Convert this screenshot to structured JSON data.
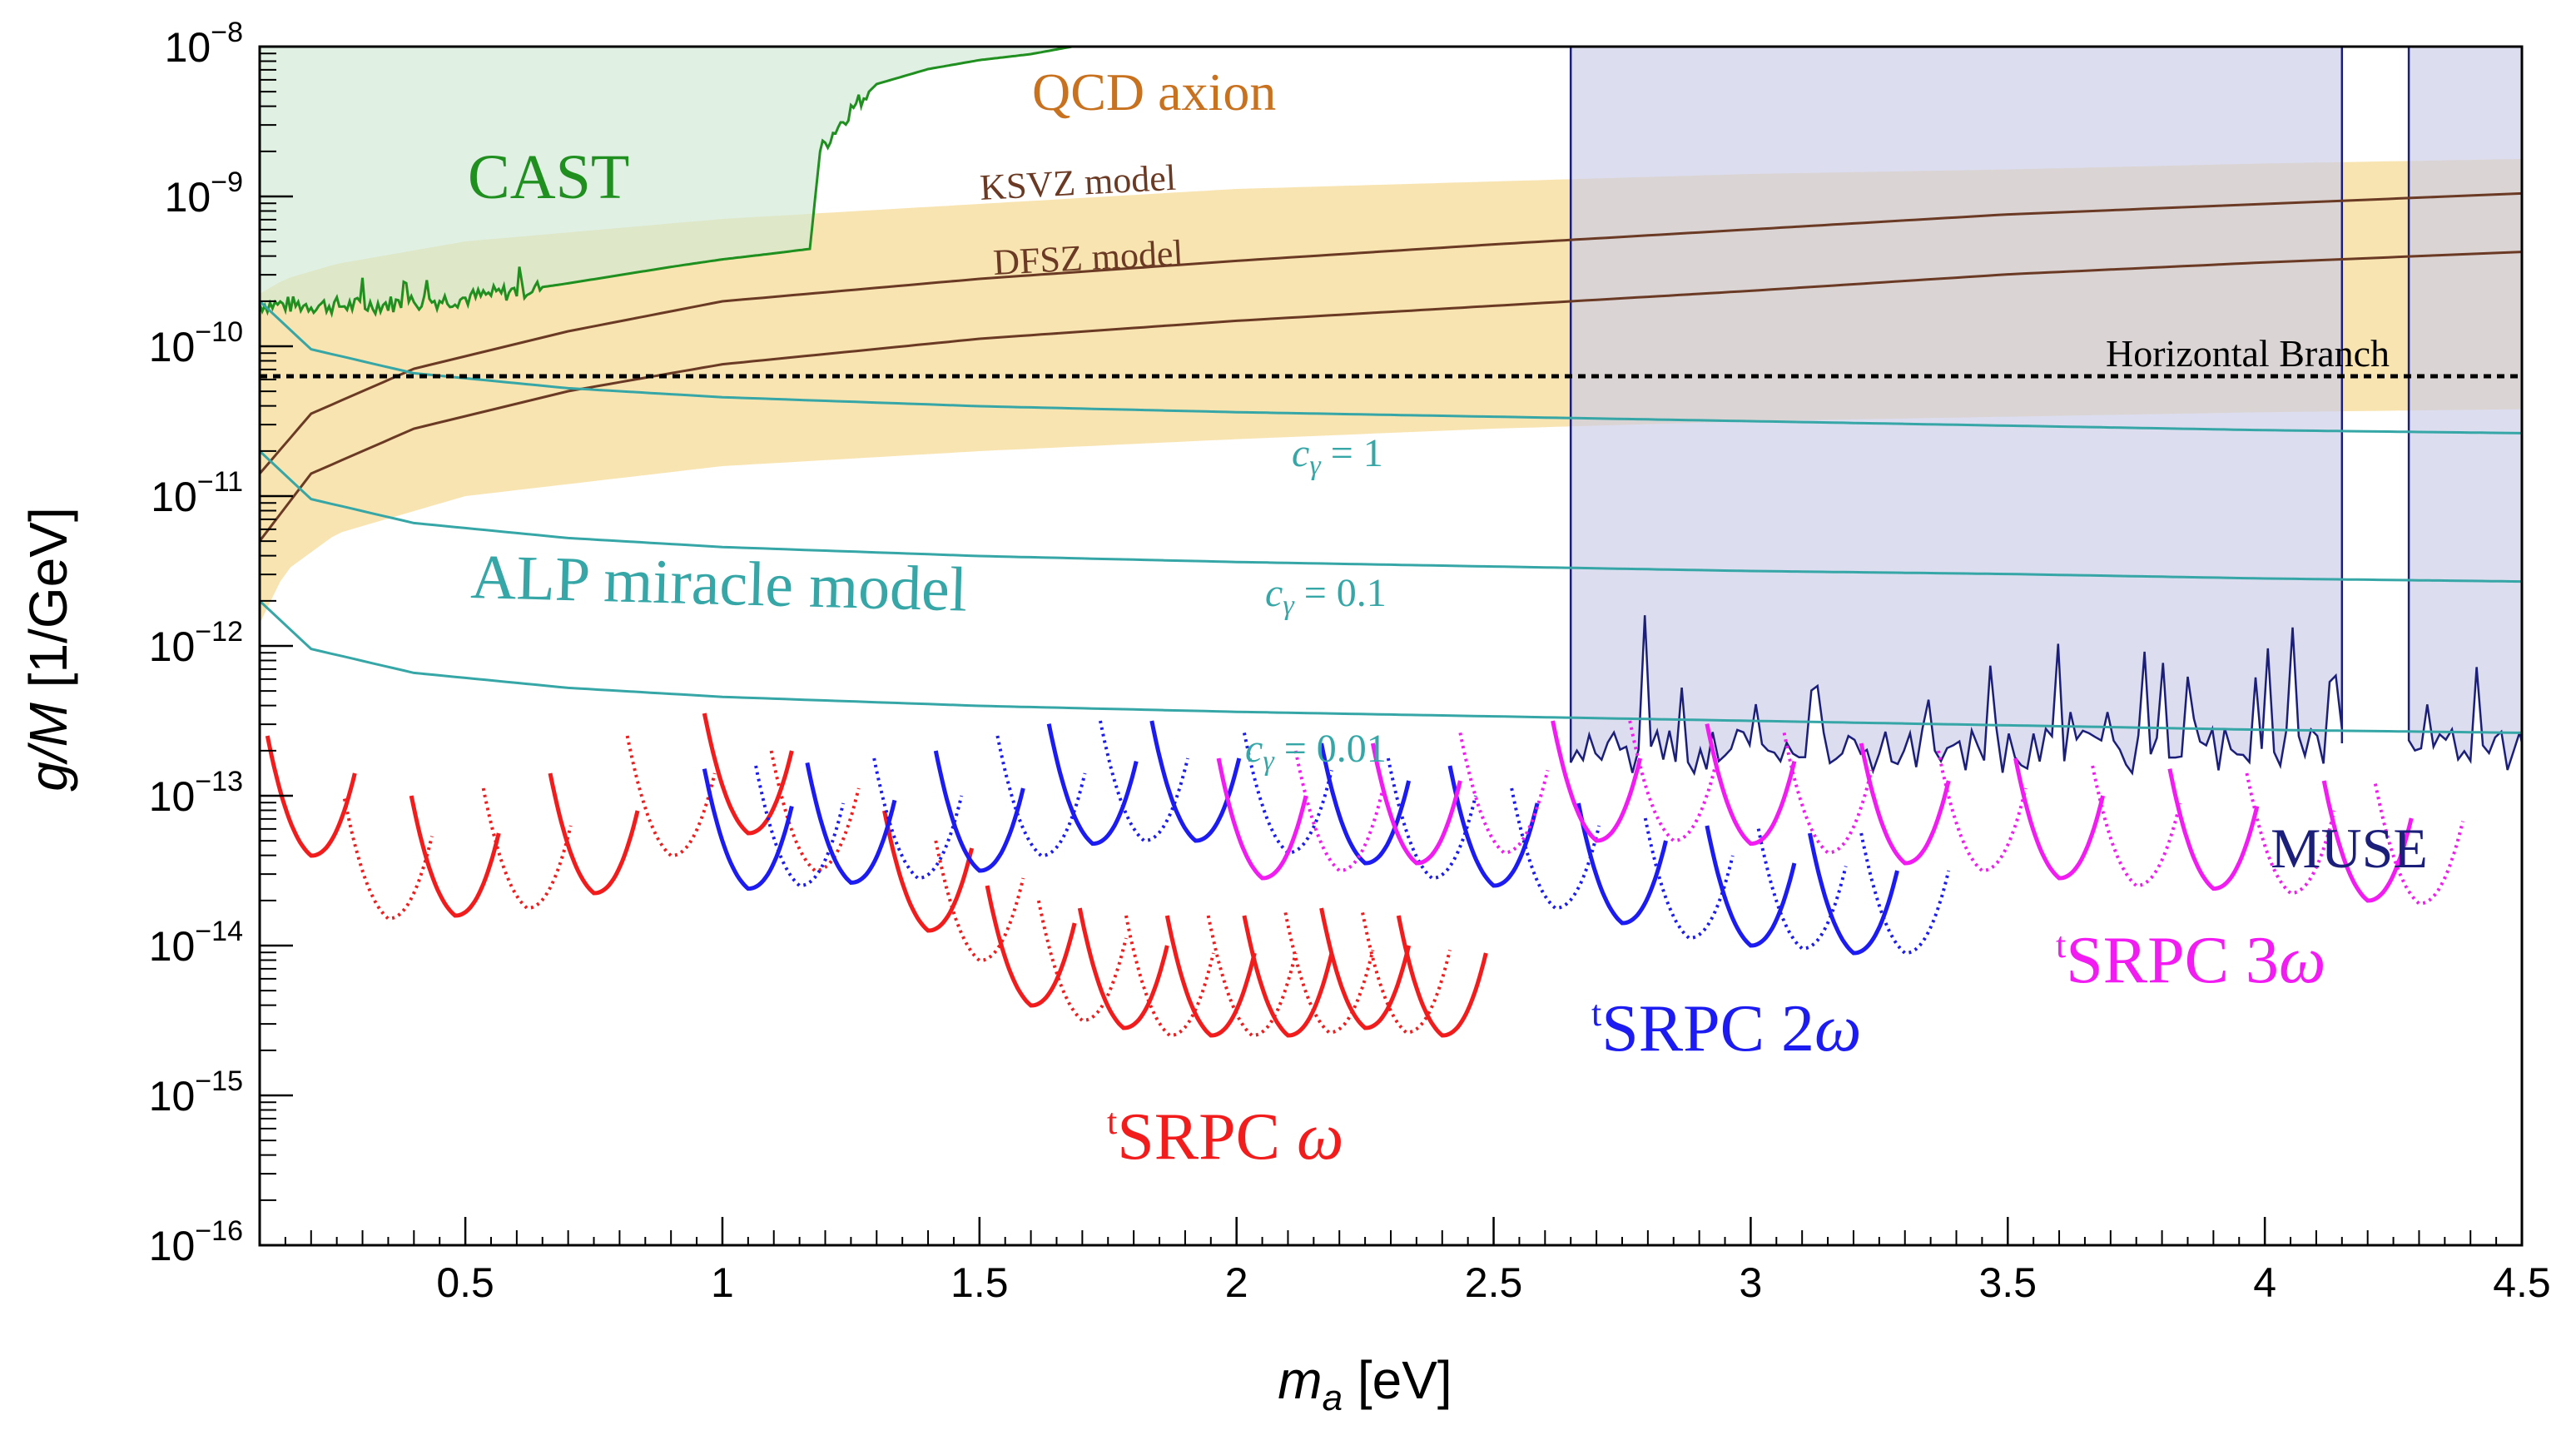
{
  "chart_data": {
    "type": "line",
    "title": "",
    "xlabel": {
      "symbol": "m",
      "sub": "a",
      "unit": " [eV]"
    },
    "ylabel": {
      "symbol": "g/M",
      "unit": " [1/GeV]"
    },
    "xlim": [
      0.1,
      4.5
    ],
    "ylim_log10": [
      -16,
      -8
    ],
    "x_ticks": [
      0.5,
      1,
      1.5,
      2,
      2.5,
      3,
      3.5,
      4,
      4.5
    ],
    "x_tick_labels": [
      "0.5",
      "1",
      "1.5",
      "2",
      "2.5",
      "3",
      "3.5",
      "4",
      "4.5"
    ],
    "y_tick_labels": [
      {
        "exp": -8,
        "base": "10",
        "sup": "−8"
      },
      {
        "exp": -9,
        "base": "10",
        "sup": "−9"
      },
      {
        "exp": -10,
        "base": "10",
        "sup": "−10"
      },
      {
        "exp": -11,
        "base": "10",
        "sup": "−11"
      },
      {
        "exp": -12,
        "base": "10",
        "sup": "−12"
      },
      {
        "exp": -13,
        "base": "10",
        "sup": "−13"
      },
      {
        "exp": -14,
        "base": "10",
        "sup": "−14"
      },
      {
        "exp": -15,
        "base": "10",
        "sup": "−15"
      },
      {
        "exp": -16,
        "base": "10",
        "sup": "−16"
      }
    ],
    "colors": {
      "qcd_band": "#f7dfa3",
      "qcd_label": "#c8711f",
      "models": "#6b3a24",
      "cast": "#1f8f1f",
      "cast_fill": "#cfe8d4",
      "alp": "#36a6a6",
      "muse": "#1c1f7a",
      "muse_fill": "#c9cbe6",
      "hb": "#000000",
      "srpc1": "#f21c1c",
      "srpc2": "#1c1cf2",
      "srpc3": "#f21cf2"
    },
    "qcd_band": {
      "name": "QCD axion",
      "x": [
        0.1,
        0.15,
        0.25,
        0.5,
        1.0,
        1.5,
        2.0,
        2.5,
        3.0,
        3.5,
        4.0,
        4.5
      ],
      "upper_log10": [
        -9.65,
        -9.55,
        -9.45,
        -9.3,
        -9.15,
        -9.05,
        -8.95,
        -8.9,
        -8.85,
        -8.82,
        -8.78,
        -8.75
      ],
      "lower_log10": [
        -11.85,
        -11.5,
        -11.25,
        -11.0,
        -10.8,
        -10.7,
        -10.62,
        -10.55,
        -10.5,
        -10.47,
        -10.44,
        -10.42
      ]
    },
    "series": [
      {
        "name": "KSVZ model",
        "color": "models",
        "x": [
          0.1,
          0.2,
          0.4,
          0.7,
          1.0,
          1.5,
          2.0,
          2.5,
          3.0,
          3.5,
          4.0,
          4.5
        ],
        "y_log10": [
          -10.85,
          -10.45,
          -10.15,
          -9.9,
          -9.7,
          -9.55,
          -9.43,
          -9.32,
          -9.22,
          -9.12,
          -9.05,
          -8.98
        ]
      },
      {
        "name": "DFSZ model",
        "color": "models",
        "x": [
          0.1,
          0.2,
          0.4,
          0.7,
          1.0,
          1.5,
          2.0,
          2.5,
          3.0,
          3.5,
          4.0,
          4.5
        ],
        "y_log10": [
          -11.3,
          -10.85,
          -10.55,
          -10.3,
          -10.12,
          -9.95,
          -9.83,
          -9.73,
          -9.63,
          -9.52,
          -9.44,
          -9.37
        ]
      },
      {
        "name": "c_gamma = 1",
        "color": "alp",
        "x": [
          0.1,
          0.2,
          0.4,
          0.7,
          1.0,
          1.5,
          2.0,
          2.5,
          3.0,
          3.5,
          4.0,
          4.5
        ],
        "y_log10": [
          -9.7,
          -10.02,
          -10.18,
          -10.28,
          -10.34,
          -10.4,
          -10.44,
          -10.47,
          -10.5,
          -10.53,
          -10.56,
          -10.58
        ]
      },
      {
        "name": "c_gamma = 0.1",
        "color": "alp",
        "x": [
          0.1,
          0.2,
          0.4,
          0.7,
          1.0,
          1.5,
          2.0,
          2.5,
          3.0,
          3.5,
          4.0,
          4.5
        ],
        "y_log10": [
          -10.7,
          -11.02,
          -11.18,
          -11.28,
          -11.34,
          -11.4,
          -11.44,
          -11.47,
          -11.5,
          -11.52,
          -11.55,
          -11.57
        ]
      },
      {
        "name": "c_gamma = 0.01",
        "color": "alp",
        "x": [
          0.1,
          0.2,
          0.4,
          0.7,
          1.0,
          1.5,
          2.0,
          2.5,
          3.0,
          3.5,
          4.0,
          4.5
        ],
        "y_log10": [
          -11.7,
          -12.02,
          -12.18,
          -12.28,
          -12.34,
          -12.4,
          -12.44,
          -12.47,
          -12.5,
          -12.53,
          -12.56,
          -12.58
        ]
      },
      {
        "name": "Horizontal Branch",
        "color": "hb",
        "dash": true,
        "x": [
          0.1,
          4.5
        ],
        "y_log10": [
          -10.2,
          -10.2
        ]
      }
    ],
    "cast": {
      "name": "CAST",
      "x": [
        0.1,
        0.3,
        0.5,
        0.7,
        0.9,
        1.0,
        1.1,
        1.17,
        1.19,
        1.22,
        1.25,
        1.3,
        1.4,
        1.5,
        1.6,
        1.68
      ],
      "y_log10": [
        -9.72,
        -9.73,
        -9.68,
        -9.58,
        -9.47,
        -9.42,
        -9.38,
        -9.35,
        -8.7,
        -8.55,
        -8.42,
        -8.25,
        -8.15,
        -8.09,
        -8.05,
        -8.0
      ],
      "noisy_until": 0.65
    },
    "muse": {
      "name": "MUSE",
      "x_min": 2.65,
      "x_gap": [
        4.15,
        4.28
      ],
      "x_max": 4.5,
      "floor_log10": -12.85,
      "spike_seeds": [
        0.5,
        0.9,
        0.3,
        1.2,
        0.7,
        1.5,
        0.4,
        0.8
      ]
    },
    "srpc": [
      {
        "name": "SRPC ω",
        "color": "srpc1",
        "solid_minima": [
          {
            "x": 0.2,
            "y": -13.4
          },
          {
            "x": 0.48,
            "y": -13.8
          },
          {
            "x": 0.75,
            "y": -13.65
          },
          {
            "x": 1.05,
            "y": -13.25
          },
          {
            "x": 1.4,
            "y": -13.9
          },
          {
            "x": 1.6,
            "y": -14.4
          },
          {
            "x": 1.78,
            "y": -14.55
          },
          {
            "x": 1.95,
            "y": -14.6
          },
          {
            "x": 2.1,
            "y": -14.6
          },
          {
            "x": 2.25,
            "y": -14.55
          },
          {
            "x": 2.4,
            "y": -14.6
          }
        ],
        "dotted_minima": [
          {
            "x": 0.35,
            "y": -13.82
          },
          {
            "x": 0.62,
            "y": -13.75
          },
          {
            "x": 0.9,
            "y": -13.4
          },
          {
            "x": 1.18,
            "y": -13.5
          },
          {
            "x": 1.5,
            "y": -14.1
          },
          {
            "x": 1.7,
            "y": -14.5
          },
          {
            "x": 1.87,
            "y": -14.6
          },
          {
            "x": 2.03,
            "y": -14.6
          },
          {
            "x": 2.18,
            "y": -14.58
          },
          {
            "x": 2.33,
            "y": -14.58
          }
        ]
      },
      {
        "name": "SRPC 2ω",
        "color": "srpc2",
        "solid_minima": [
          {
            "x": 1.05,
            "y": -13.62
          },
          {
            "x": 1.25,
            "y": -13.58
          },
          {
            "x": 1.5,
            "y": -13.5
          },
          {
            "x": 1.72,
            "y": -13.32
          },
          {
            "x": 1.92,
            "y": -13.3
          },
          {
            "x": 2.25,
            "y": -13.45
          },
          {
            "x": 2.5,
            "y": -13.6
          },
          {
            "x": 2.75,
            "y": -13.85
          },
          {
            "x": 3.0,
            "y": -14.0
          },
          {
            "x": 3.2,
            "y": -14.05
          }
        ],
        "dotted_minima": [
          {
            "x": 1.15,
            "y": -13.6
          },
          {
            "x": 1.38,
            "y": -13.55
          },
          {
            "x": 1.62,
            "y": -13.4
          },
          {
            "x": 1.82,
            "y": -13.3
          },
          {
            "x": 2.1,
            "y": -13.38
          },
          {
            "x": 2.38,
            "y": -13.55
          },
          {
            "x": 2.62,
            "y": -13.75
          },
          {
            "x": 2.88,
            "y": -13.95
          },
          {
            "x": 3.1,
            "y": -14.02
          },
          {
            "x": 3.3,
            "y": -14.05
          }
        ]
      },
      {
        "name": "SRPC 3ω",
        "color": "srpc3",
        "solid_minima": [
          {
            "x": 2.05,
            "y": -13.55
          },
          {
            "x": 2.35,
            "y": -13.45
          },
          {
            "x": 2.7,
            "y": -13.3
          },
          {
            "x": 3.0,
            "y": -13.32
          },
          {
            "x": 3.3,
            "y": -13.45
          },
          {
            "x": 3.6,
            "y": -13.55
          },
          {
            "x": 3.9,
            "y": -13.62
          },
          {
            "x": 4.2,
            "y": -13.7
          }
        ],
        "dotted_minima": [
          {
            "x": 2.2,
            "y": -13.5
          },
          {
            "x": 2.52,
            "y": -13.38
          },
          {
            "x": 2.85,
            "y": -13.3
          },
          {
            "x": 3.15,
            "y": -13.38
          },
          {
            "x": 3.45,
            "y": -13.5
          },
          {
            "x": 3.75,
            "y": -13.6
          },
          {
            "x": 4.05,
            "y": -13.65
          },
          {
            "x": 4.3,
            "y": -13.72
          }
        ]
      }
    ],
    "annotations": {
      "cast": "CAST",
      "qcd": "QCD axion",
      "ksvz": "KSVZ model",
      "dfsz": "DFSZ model",
      "hb": "Horizontal Branch",
      "alp_model": "ALP miracle model",
      "c_symbol": "c",
      "c_sub": "γ",
      "c1": " = 1",
      "c01": " = 0.1",
      "c001": " = 0.01",
      "muse": "MUSE",
      "srpc_sup": "t",
      "srpc": "SRPC ",
      "omega": "ω",
      "two": "2",
      "three": "3"
    }
  }
}
